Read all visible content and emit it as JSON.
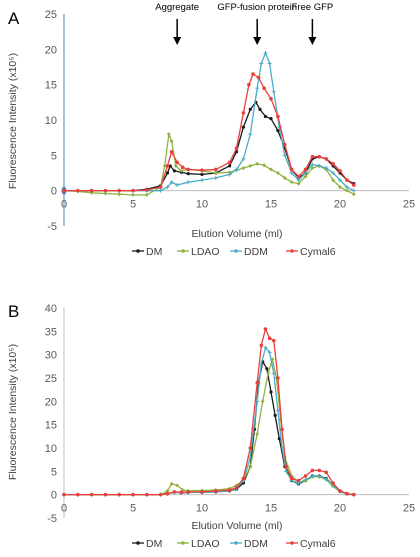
{
  "chart_data": [
    {
      "type": "line",
      "panel_label": "A",
      "xlabel": "Elution Volume (ml)",
      "ylabel": "Fluorescence Intensity (x10⁵)",
      "xlim": [
        0,
        25
      ],
      "ylim": [
        -5,
        25
      ],
      "xticks": [
        0,
        5,
        10,
        15,
        20,
        25
      ],
      "yticks": [
        -5,
        0,
        5,
        10,
        15,
        20,
        25
      ],
      "grid": false,
      "legend": "bottom",
      "annotations": [
        {
          "text": "Aggregate",
          "x": 8.2
        },
        {
          "text": "GFP-fusion protein",
          "x": 14.0
        },
        {
          "text": "Free GFP",
          "x": 18.0
        }
      ],
      "series": [
        {
          "name": "DM",
          "color": "#1a1a1a",
          "x": [
            0,
            1,
            2,
            3,
            4,
            5,
            6,
            7,
            7.5,
            7.7,
            8,
            8.5,
            9,
            10,
            11,
            12,
            12.5,
            13,
            13.5,
            13.9,
            14.2,
            14.6,
            15,
            15.5,
            16,
            16.5,
            17,
            17.5,
            18,
            18.5,
            19,
            19.5,
            20,
            20.5,
            21
          ],
          "y": [
            0,
            0,
            0,
            0,
            0,
            0,
            0.2,
            0.7,
            2.5,
            3.5,
            2.8,
            2.6,
            2.4,
            2.3,
            2.5,
            3.5,
            5.5,
            9.0,
            11.5,
            12.5,
            11.5,
            10.5,
            10.2,
            8.5,
            6.0,
            3.0,
            1.8,
            2.5,
            4.5,
            4.8,
            4.5,
            3.5,
            2.5,
            1.5,
            1.0
          ]
        },
        {
          "name": "LDAO",
          "color": "#8fb440",
          "x": [
            0,
            1,
            2,
            3,
            4,
            5,
            6,
            7,
            7.3,
            7.6,
            7.8,
            8.1,
            8.5,
            9,
            10,
            11,
            12,
            12.5,
            13,
            13.5,
            14,
            14.5,
            15,
            15.5,
            16,
            16.5,
            17,
            17.5,
            18,
            18.5,
            19,
            19.5,
            20,
            20.5,
            21
          ],
          "y": [
            0,
            -0.1,
            -0.3,
            -0.4,
            -0.5,
            -0.6,
            -0.6,
            0.5,
            3.5,
            8.0,
            7.0,
            3.5,
            2.8,
            3.0,
            2.8,
            2.5,
            2.6,
            2.9,
            3.2,
            3.5,
            3.8,
            3.6,
            3.0,
            2.5,
            1.8,
            1.2,
            1.0,
            2.0,
            3.2,
            3.5,
            3.0,
            1.5,
            0.5,
            0.0,
            -0.5
          ]
        },
        {
          "name": "DDM",
          "color": "#4bacc6",
          "x": [
            0,
            1,
            2,
            3,
            4,
            5,
            6,
            7,
            7.5,
            7.8,
            8.2,
            9,
            10,
            11,
            12,
            12.5,
            13,
            13.5,
            14,
            14.3,
            14.6,
            14.9,
            15.2,
            15.6,
            16,
            16.5,
            17,
            17.5,
            18,
            18.5,
            19,
            19.5,
            20,
            20.5,
            21
          ],
          "y": [
            0,
            0,
            0,
            0,
            0,
            0,
            0,
            0,
            0.5,
            1.2,
            0.8,
            1.2,
            1.5,
            1.8,
            2.3,
            3.0,
            4.5,
            8.0,
            14.5,
            18.0,
            19.5,
            18.0,
            14.0,
            9.0,
            5.0,
            2.5,
            1.5,
            2.5,
            3.7,
            3.5,
            3.2,
            2.5,
            1.5,
            0.5,
            0.0
          ]
        },
        {
          "name": "Cymal6",
          "color": "#e8403a",
          "x": [
            0,
            1,
            2,
            3,
            4,
            5,
            6,
            7,
            7.5,
            7.8,
            8.2,
            8.6,
            9,
            10,
            11,
            12,
            12.5,
            13,
            13.4,
            13.7,
            14.1,
            14.5,
            15,
            15.5,
            16,
            16.5,
            17,
            17.5,
            18,
            18.5,
            19,
            19.5,
            20,
            20.5,
            21
          ],
          "y": [
            0,
            0,
            0,
            0,
            0,
            0,
            0.1,
            0.5,
            3.5,
            5.5,
            4.0,
            3.3,
            3.0,
            2.9,
            3.0,
            4.0,
            6.0,
            11.0,
            15.0,
            16.5,
            16.0,
            14.5,
            13.0,
            10.5,
            6.5,
            3.0,
            2.0,
            3.0,
            4.8,
            4.8,
            4.5,
            3.8,
            2.8,
            1.5,
            0.8
          ]
        }
      ]
    },
    {
      "type": "line",
      "panel_label": "B",
      "xlabel": "Elution Volume (ml)",
      "ylabel": "Fluorescence Intensity (x10⁵)",
      "xlim": [
        0,
        25
      ],
      "ylim": [
        -5,
        40
      ],
      "xticks": [
        0,
        5,
        10,
        15,
        20,
        25
      ],
      "yticks": [
        -5,
        0,
        5,
        10,
        15,
        20,
        25,
        30,
        35,
        40
      ],
      "grid": false,
      "legend": "bottom",
      "series": [
        {
          "name": "DM",
          "color": "#1a1a1a",
          "x": [
            0,
            1,
            2,
            3,
            4,
            5,
            6,
            7,
            7.5,
            8,
            8.5,
            9,
            10,
            11,
            12,
            12.5,
            13,
            13.5,
            13.8,
            14.1,
            14.4,
            14.7,
            15,
            15.3,
            15.6,
            16,
            16.5,
            17,
            17.5,
            18,
            18.5,
            19,
            19.5,
            20,
            20.5,
            21
          ],
          "y": [
            0,
            0,
            0,
            0,
            0,
            0,
            0,
            0,
            0.2,
            0.6,
            0.4,
            0.5,
            0.5,
            0.6,
            0.8,
            1.2,
            2.5,
            6.0,
            14.0,
            24.0,
            28.5,
            27.0,
            22.0,
            17.0,
            12.0,
            6.0,
            3.0,
            2.3,
            3.0,
            4.0,
            4.0,
            3.5,
            2.0,
            0.8,
            0.2,
            0.0
          ]
        },
        {
          "name": "LDAO",
          "color": "#8fb440",
          "x": [
            0,
            1,
            2,
            3,
            4,
            5,
            6,
            7,
            7.5,
            7.8,
            8.2,
            8.6,
            9,
            10,
            11,
            12,
            12.5,
            13,
            13.5,
            14,
            14.4,
            14.8,
            15.1,
            15.4,
            15.7,
            16,
            16.5,
            17,
            17.5,
            18,
            18.5,
            19,
            19.5,
            20,
            20.5,
            21
          ],
          "y": [
            0,
            0,
            0,
            0,
            0,
            0,
            0,
            0,
            0.8,
            2.3,
            2.0,
            1.0,
            0.8,
            0.9,
            1.0,
            1.3,
            2.0,
            3.0,
            6.0,
            13.0,
            20.0,
            26.0,
            29.0,
            25.0,
            16.0,
            8.0,
            4.0,
            2.5,
            3.0,
            3.8,
            3.8,
            3.2,
            1.8,
            0.6,
            0.2,
            0.0
          ]
        },
        {
          "name": "DDM",
          "color": "#4bacc6",
          "x": [
            0,
            1,
            2,
            3,
            4,
            5,
            6,
            7,
            7.5,
            8,
            8.5,
            9,
            10,
            11,
            12,
            12.5,
            13,
            13.5,
            14,
            14.3,
            14.6,
            14.9,
            15.2,
            15.5,
            15.8,
            16.1,
            16.5,
            17,
            17.5,
            18,
            18.5,
            19,
            19.5,
            20,
            20.5,
            21
          ],
          "y": [
            0,
            0,
            0,
            0,
            0,
            0,
            0,
            0,
            0.2,
            0.5,
            0.4,
            0.5,
            0.5,
            0.6,
            0.8,
            1.3,
            3.0,
            8.0,
            20.0,
            28.0,
            31.5,
            30.5,
            26.0,
            18.0,
            10.0,
            5.0,
            3.0,
            2.5,
            3.2,
            4.0,
            4.0,
            3.4,
            2.0,
            0.7,
            0.2,
            0.0
          ]
        },
        {
          "name": "Cymal6",
          "color": "#e8403a",
          "x": [
            0,
            1,
            2,
            3,
            4,
            5,
            6,
            7,
            7.5,
            8,
            8.5,
            9,
            10,
            11,
            12,
            12.5,
            13,
            13.5,
            14,
            14.3,
            14.6,
            14.9,
            15.2,
            15.5,
            15.8,
            16.1,
            16.5,
            17,
            17.5,
            18,
            18.5,
            19,
            19.5,
            20,
            20.5,
            21
          ],
          "y": [
            0,
            0,
            0,
            0,
            0,
            0,
            0,
            0,
            0.2,
            0.6,
            0.5,
            0.6,
            0.6,
            0.8,
            1.0,
            1.5,
            3.5,
            10.0,
            24.0,
            32.0,
            35.5,
            33.5,
            33.0,
            25.0,
            14.0,
            6.0,
            3.5,
            3.0,
            4.0,
            5.2,
            5.2,
            4.8,
            2.5,
            0.8,
            0.2,
            0.0
          ]
        }
      ]
    }
  ]
}
